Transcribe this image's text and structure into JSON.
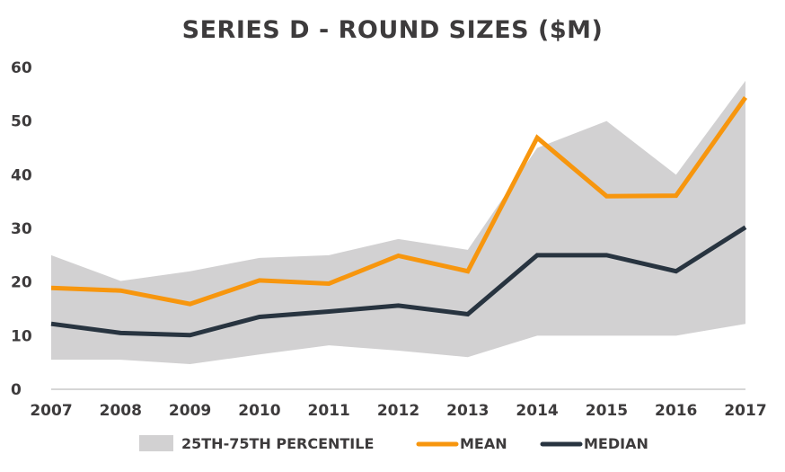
{
  "chart_data": {
    "type": "line",
    "title": "SERIES D - ROUND SIZES ($M)",
    "xlabel": "",
    "ylabel": "",
    "categories": [
      "2007",
      "2008",
      "2009",
      "2010",
      "2011",
      "2012",
      "2013",
      "2014",
      "2015",
      "2016",
      "2017"
    ],
    "ylim": [
      0,
      60
    ],
    "yticks": [
      0,
      10,
      20,
      30,
      40,
      50,
      60
    ],
    "grid": false,
    "legend_position": "bottom",
    "band": {
      "name": "25TH-75TH PERCENTILE",
      "low": [
        5.5,
        5.5,
        4.7,
        6.5,
        8.2,
        7.2,
        6.0,
        10.0,
        10.0,
        10.0,
        12.2
      ],
      "high": [
        25.0,
        20.2,
        22.0,
        24.5,
        25.0,
        28.0,
        26.0,
        45.0,
        50.0,
        40.0,
        57.5
      ],
      "color": "#d2d1d2"
    },
    "series": [
      {
        "name": "MEAN",
        "values": [
          18.9,
          18.4,
          15.9,
          20.3,
          19.7,
          24.9,
          22.0,
          46.9,
          36.0,
          36.1,
          54.4
        ],
        "color": "#f7960e"
      },
      {
        "name": "MEDIAN",
        "values": [
          12.2,
          10.5,
          10.1,
          13.5,
          14.5,
          15.6,
          14.0,
          25.0,
          25.0,
          22.0,
          30.2
        ],
        "color": "#283440"
      }
    ],
    "text_color": "#3d3b3c"
  }
}
